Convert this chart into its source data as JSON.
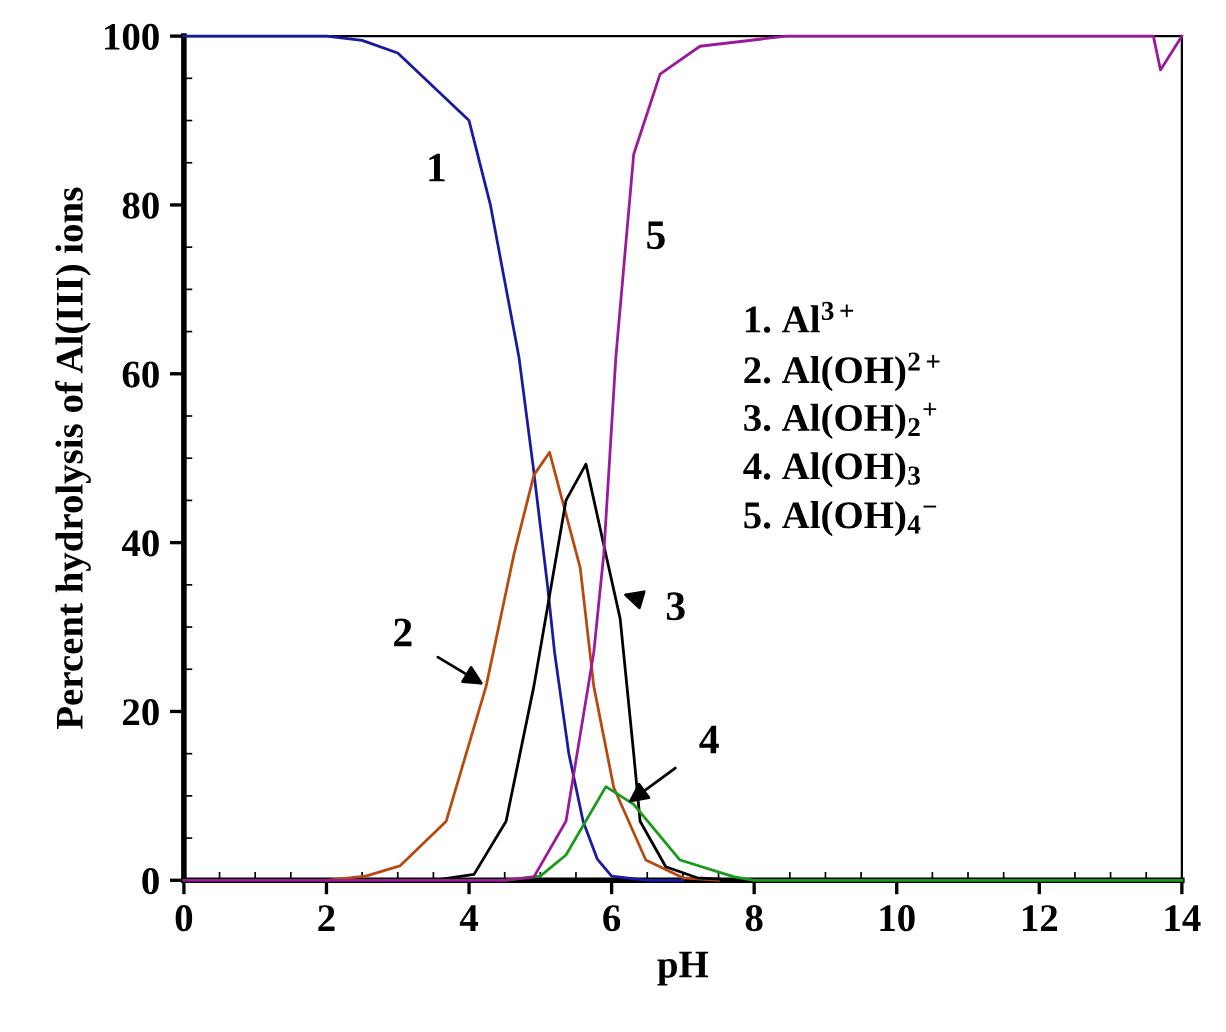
{
  "chart_data": {
    "type": "line",
    "xlabel": "pH",
    "ylabel": "Percent hydrolysis of Al(III) ions",
    "xlim": [
      0,
      14
    ],
    "ylim": [
      0,
      100
    ],
    "xticks": [
      0,
      2,
      4,
      6,
      8,
      10,
      12,
      14
    ],
    "yticks": [
      0,
      20,
      40,
      60,
      80,
      100
    ],
    "grid": false,
    "legend": false,
    "marker": "none",
    "line_style": "solid",
    "series": [
      {
        "color": "#1a1aa0",
        "x": [
          0,
          2,
          2.5,
          3,
          3.5,
          4,
          4.3,
          4.5,
          4.7,
          4.9,
          5.1,
          5.2,
          5.4,
          5.6,
          5.8,
          6,
          6.5,
          7
        ],
        "values": [
          100,
          100,
          99.5,
          98,
          94,
          90,
          80,
          71,
          62,
          49,
          35,
          27,
          15,
          7,
          2.5,
          0.5,
          0,
          0
        ]
      },
      {
        "color": "#b84a10",
        "x": [
          2,
          2.55,
          3.03,
          3.68,
          4.24,
          4.63,
          4.91,
          5.13,
          5.56,
          5.75,
          6.03,
          6.48,
          7,
          7.5
        ],
        "values": [
          0,
          0.5,
          1.7,
          7,
          23,
          38.6,
          48,
          50.7,
          37,
          23,
          11,
          2.4,
          0.3,
          0
        ]
      },
      {
        "color": "#000000",
        "x": [
          3.5,
          4.07,
          4.52,
          4.91,
          5.36,
          5.64,
          5.92,
          6.12,
          6.31,
          6.4,
          6.76,
          7.2,
          7.8
        ],
        "values": [
          0,
          0.7,
          7,
          23,
          45,
          49.3,
          38.6,
          31,
          15,
          7,
          1.6,
          0.3,
          0
        ]
      },
      {
        "color": "#1a9a1a",
        "x": [
          4.5,
          5,
          5.36,
          5.92,
          6.31,
          6.96,
          7.72,
          8,
          14
        ],
        "values": [
          0,
          0.5,
          3,
          11.1,
          9,
          2.4,
          0.4,
          0,
          0
        ]
      },
      {
        "color": "#9a1a9a",
        "x": [
          0,
          4.5,
          4.91,
          5.36,
          5.75,
          5.89,
          6.06,
          6.31,
          6.68,
          7.24,
          8.45,
          13.6,
          13.7,
          14
        ],
        "values": [
          0,
          0,
          0.4,
          7,
          27,
          38.6,
          62,
          86,
          95.5,
          98.8,
          100,
          100,
          96,
          100
        ]
      }
    ],
    "annotations": [
      "1",
      "5",
      {
        "text": "2",
        "x": 4.24,
        "y": 23
      },
      {
        "text": "3",
        "x": 6.12,
        "y": 34
      },
      {
        "text": "4",
        "x": 6.2,
        "y": 9
      },
      "1. Al$^{3+}$",
      "2. Al(OH)$^{2+}$",
      "3. Al(OH)$_{2}$$^{+}$",
      "4. Al(OH)$_{3}$",
      "5. Al(OH)$_{4}$$^{−}$"
    ]
  }
}
